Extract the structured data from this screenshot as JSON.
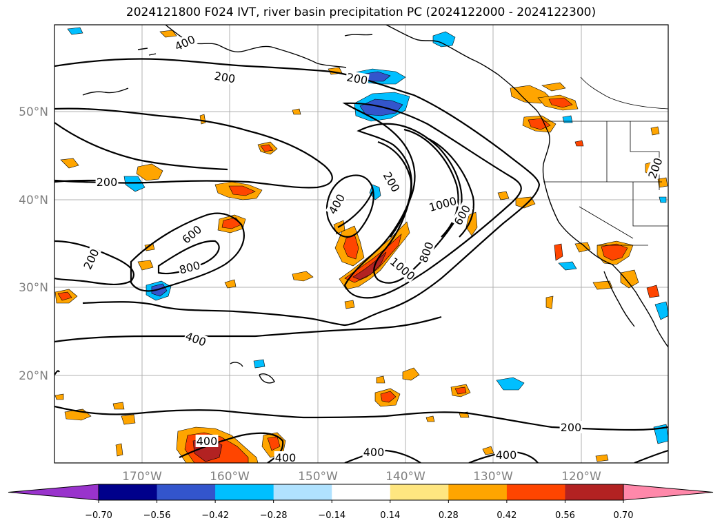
{
  "title": "2024121800 F024 IVT, river basin precipitation PC (2024122000 - 2024122300)",
  "map": {
    "lat_ticks": [
      "50°N",
      "40°N",
      "30°N",
      "20°N"
    ],
    "lon_ticks": [
      "170°W",
      "160°W",
      "150°W",
      "140°W",
      "130°W",
      "120°W"
    ],
    "grid": true,
    "contour_labels": [
      {
        "text": "400"
      },
      {
        "text": "200"
      },
      {
        "text": "200"
      },
      {
        "text": "200"
      },
      {
        "text": "400"
      },
      {
        "text": "200"
      },
      {
        "text": "1000"
      },
      {
        "text": "600"
      },
      {
        "text": "600"
      },
      {
        "text": "800"
      },
      {
        "text": "200"
      },
      {
        "text": "1000"
      },
      {
        "text": "800"
      },
      {
        "text": "400"
      },
      {
        "text": "200"
      },
      {
        "text": "400"
      },
      {
        "text": "400"
      },
      {
        "text": "400"
      },
      {
        "text": "400"
      },
      {
        "text": "200"
      }
    ]
  },
  "colorbar": {
    "labels": [
      "−0.70",
      "−0.56",
      "−0.42",
      "−0.28",
      "−0.14",
      "0.14",
      "0.28",
      "0.42",
      "0.56",
      "0.70"
    ],
    "colors": [
      "#9933cc",
      "#00008b",
      "#3355cc",
      "#00bfff",
      "#b0e2ff",
      "#ffffff",
      "#ffe680",
      "#ffa500",
      "#ff4500",
      "#b22222",
      "#ff88aa"
    ]
  }
}
